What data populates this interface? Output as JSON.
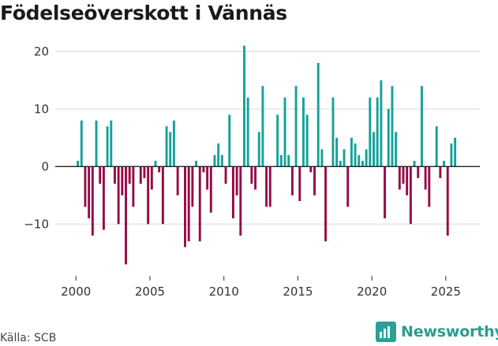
{
  "title": "Födelseöverskott i Vännäs",
  "source": "Källa: SCB",
  "brand": "Newsworthy",
  "colors": {
    "positive": "#14a19a",
    "negative": "#960a47",
    "grid": "#d9d9d9",
    "zero": "#222222"
  },
  "chart_data": {
    "type": "bar",
    "title": "Födelseöverskott i Vännäs",
    "xlabel": "",
    "ylabel": "",
    "xlim": [
      1998.6,
      2027.3
    ],
    "ylim": [
      -19,
      21
    ],
    "x_ticks": [
      2000,
      2005,
      2010,
      2015,
      2020,
      2025
    ],
    "y_ticks": [
      20,
      10,
      0,
      -10
    ],
    "y_tick_labels": [
      "20",
      "10",
      "0",
      "−10"
    ],
    "frequency": "quarterly",
    "start": 2000.0,
    "values": [
      1,
      8,
      -7,
      -9,
      -12,
      8,
      -3,
      -11,
      7,
      8,
      -3,
      -10,
      -5,
      -17,
      -3,
      -7,
      0,
      -3,
      -2,
      -10,
      -4,
      1,
      -1,
      -10,
      7,
      6,
      8,
      -5,
      0,
      -14,
      -13,
      -7,
      1,
      -13,
      -1,
      -4,
      -8,
      2,
      4,
      2,
      -3,
      9,
      -9,
      -5,
      -12,
      21,
      12,
      -3,
      -4,
      6,
      14,
      -7,
      -7,
      0,
      9,
      2,
      12,
      2,
      -5,
      14,
      -6,
      12,
      9,
      -1,
      -5,
      18,
      3,
      -13,
      0,
      12,
      5,
      1,
      3,
      -7,
      5,
      4,
      2,
      1,
      3,
      12,
      6,
      12,
      15,
      -9,
      10,
      14,
      6,
      -4,
      -3,
      -5,
      -10,
      1,
      -2,
      14,
      -4,
      -7,
      0,
      7,
      -2,
      1,
      -12,
      4,
      5
    ]
  }
}
